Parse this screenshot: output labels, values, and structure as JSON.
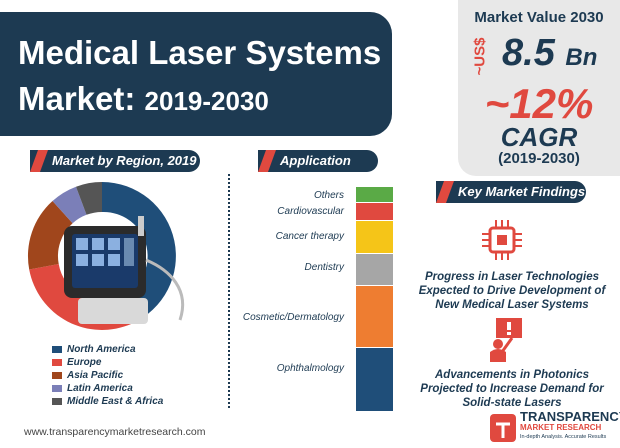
{
  "title": {
    "line1": "Medical Laser Systems",
    "line2_main": "Market: ",
    "line2_years": "2019-2030"
  },
  "market_value": {
    "label": "Market Value 2030",
    "currency": "~US$",
    "value": "8.5",
    "unit": "Bn",
    "cagr_value": "~12%",
    "cagr_label": "CAGR",
    "cagr_period": "(2019-2030)"
  },
  "region": {
    "heading": "Market by Region, 2019",
    "legend": [
      "North America",
      "Europe",
      "Asia Pacific",
      "Latin America",
      "Middle East & Africa"
    ]
  },
  "application": {
    "heading": "Application",
    "items": [
      "Others",
      "Cardiovascular",
      "Cancer therapy",
      "Dentistry",
      "Cosmetic/Dermatology",
      "Ophthalmology"
    ]
  },
  "findings": {
    "heading": "Key Market Findings",
    "finding1": [
      "Progress in Laser Technologies",
      "Expected to Drive Development of",
      "New Medical Laser Systems"
    ],
    "finding2": [
      "Advancements in Photonics",
      "Projected to Increase Demand for",
      "Solid-state Lasers"
    ]
  },
  "footer": {
    "url": "www.transparencymarketresearch.com"
  },
  "logo": {
    "line1": "TRANSPARENCY",
    "line2": "MARKET RESEARCH",
    "line3": "In-depth Analysis. Accurate Results"
  },
  "colors": {
    "navy": "#1d3a52",
    "red": "#e0493f",
    "blue": "#1f4e79",
    "brown": "#a0461c",
    "purple": "#7b7fb8",
    "gray": "#555555",
    "green": "#5aaa46",
    "yellow": "#f5c518",
    "lightgray": "#a6a6a6",
    "orange": "#ee7d31"
  }
}
